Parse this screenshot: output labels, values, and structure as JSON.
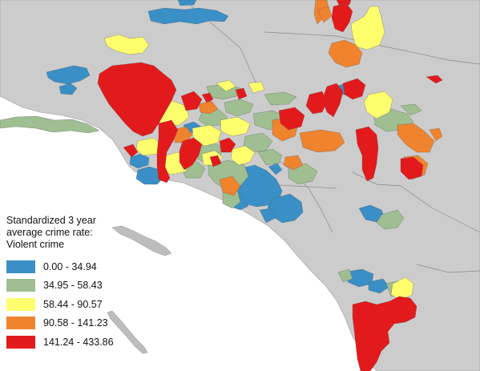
{
  "legend": {
    "title": "Standardized 3 year\naverage crime rate:\nViolent crime",
    "items": [
      {
        "label": "0.00 - 34.94",
        "color": "#3a8fc7"
      },
      {
        "label": "34.95 - 58.43",
        "color": "#9fbe91"
      },
      {
        "label": "58.44 - 90.57",
        "color": "#ffff6e"
      },
      {
        "label": "90.58 - 141.23",
        "color": "#f0832e"
      },
      {
        "label": "141.24 - 433.86",
        "color": "#e31a1c"
      }
    ]
  },
  "colors": {
    "ocean": "#ffffff",
    "land": "#cccccc",
    "boundary": "#808080",
    "island": "#bdbdbd"
  }
}
